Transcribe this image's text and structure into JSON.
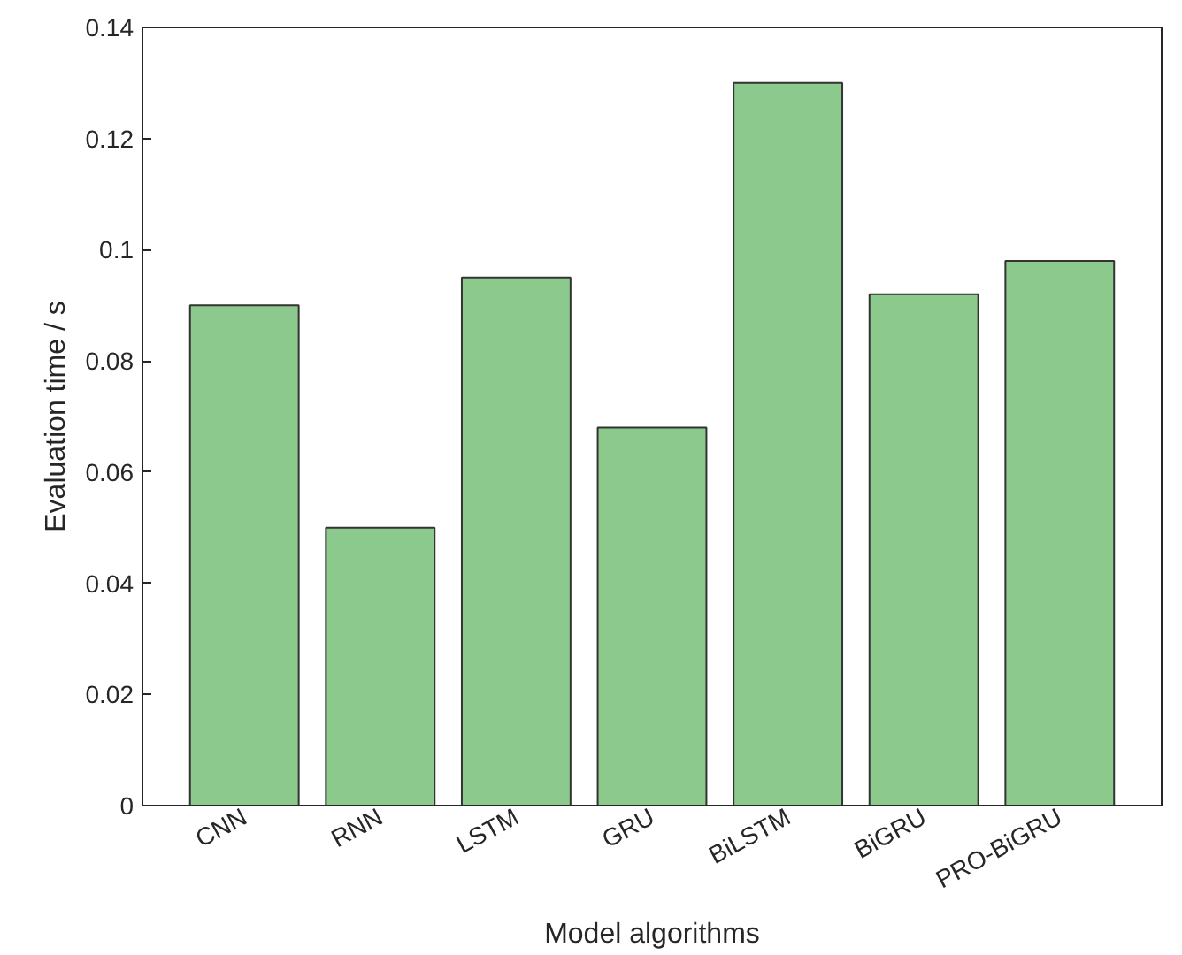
{
  "chart_data": {
    "type": "bar",
    "categories": [
      "CNN",
      "RNN",
      "LSTM",
      "GRU",
      "BiLSTM",
      "BiGRU",
      "PRO-BiGRU"
    ],
    "values": [
      0.09,
      0.05,
      0.095,
      0.068,
      0.13,
      0.092,
      0.098
    ],
    "color": "#8cc98c",
    "xlabel": "Model algorithms",
    "ylabel": "Evaluation time / s",
    "ylim": [
      0,
      0.14
    ],
    "yticks": [
      0,
      0.02,
      0.04,
      0.06,
      0.08,
      0.1,
      0.12,
      0.14
    ]
  }
}
